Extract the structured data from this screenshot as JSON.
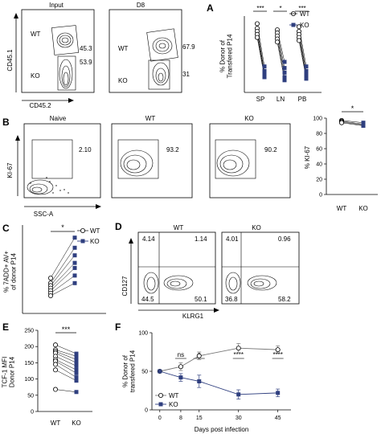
{
  "panels": {
    "A": {
      "letter": "A",
      "flow": {
        "col_titles": [
          "Input",
          "D8"
        ],
        "y_axis": "CD45.1",
        "x_axis": "CD45.2",
        "plot1": {
          "wt_label": "WT",
          "ko_label": "KO",
          "wt_pct": "45.3",
          "ko_pct": "53.9"
        },
        "plot2": {
          "wt_label": "WT",
          "ko_label": "KO",
          "wt_pct": "67.9",
          "ko_pct": "31"
        }
      }
    },
    "B": {
      "letter": "B",
      "flow": {
        "titles": [
          "Naive",
          "WT",
          "KO"
        ],
        "values": [
          "2.10",
          "93.2",
          "90.2"
        ],
        "y_axis": "KI-67",
        "x_axis": "SSC-A"
      }
    },
    "C": {
      "letter": "C"
    },
    "D": {
      "letter": "D",
      "flow": {
        "titles": [
          "WT",
          "KO"
        ],
        "y_axis": "CD127",
        "x_axis": "KLRG1",
        "wt_quadrants": [
          "4.14",
          "1.14",
          "44.5",
          "50.1"
        ],
        "ko_quadrants": [
          "4.01",
          "0.96",
          "36.8",
          "58.2"
        ]
      }
    },
    "E": {
      "letter": "E"
    },
    "F": {
      "letter": "F"
    }
  },
  "chart_data": [
    {
      "id": "A_right",
      "type": "scatter",
      "ylabel": "% Donor of\nTransfered P14",
      "categories": [
        "SP",
        "LN",
        "PB"
      ],
      "legend": [
        "WT",
        "KO"
      ],
      "legend_position": "top-right",
      "significance": [
        "***",
        "*",
        "***"
      ],
      "series": [
        {
          "name": "WT",
          "marker": "open-circle",
          "values_per_group": [
            [
              65,
              62,
              60,
              58,
              56
            ],
            [
              61,
              59,
              57,
              55,
              53
            ],
            [
              63,
              60,
              58,
              56,
              54
            ]
          ]
        },
        {
          "name": "KO",
          "marker": "filled-square",
          "values_per_group": [
            [
              37,
              34,
              32,
              31,
              30
            ],
            [
              40,
              36,
              33,
              30,
              28
            ],
            [
              37,
              34,
              32,
              30,
              29
            ]
          ]
        }
      ]
    },
    {
      "id": "B_right",
      "type": "scatter",
      "ylabel": "% KI-67",
      "categories": [
        "WT",
        "KO"
      ],
      "ylim": [
        0,
        100
      ],
      "yticks": [
        0,
        20,
        40,
        60,
        80,
        100
      ],
      "significance": "*",
      "pairs": [
        [
          97,
          94
        ],
        [
          96,
          92
        ],
        [
          95,
          91
        ],
        [
          94,
          90
        ]
      ]
    },
    {
      "id": "C",
      "type": "scatter",
      "ylabel": "% 7ADD+ AV+\nof donor P14",
      "legend": [
        "WT",
        "KO"
      ],
      "legend_position": "top-right",
      "significance": "*",
      "pairs": [
        [
          14,
          30
        ],
        [
          12,
          26
        ],
        [
          11,
          23
        ],
        [
          10,
          20
        ],
        [
          9,
          18
        ],
        [
          8,
          15
        ],
        [
          7,
          12
        ]
      ]
    },
    {
      "id": "E",
      "type": "scatter",
      "ylabel": "TCF-1 MFI\nDonor P14",
      "categories": [
        "WT",
        "KO"
      ],
      "ylim": [
        0,
        250
      ],
      "yticks": [
        0,
        50,
        100,
        150,
        200,
        250
      ],
      "significance": "***",
      "pairs": [
        [
          205,
          178
        ],
        [
          190,
          170
        ],
        [
          185,
          160
        ],
        [
          180,
          150
        ],
        [
          170,
          140
        ],
        [
          160,
          128
        ],
        [
          155,
          118
        ],
        [
          145,
          105
        ],
        [
          128,
          95
        ],
        [
          68,
          60
        ]
      ]
    },
    {
      "id": "F",
      "type": "line",
      "title": "",
      "xlabel": "Days post infection",
      "ylabel": "% Donor of\ntransfered P14",
      "x": [
        0,
        8,
        15,
        30,
        45
      ],
      "xlim": [
        0,
        45
      ],
      "ylim": [
        0,
        100
      ],
      "yticks": [
        0,
        50,
        100
      ],
      "legend_position": "bottom-left",
      "significance": [
        "ns",
        "*",
        "****",
        "****"
      ],
      "series": [
        {
          "name": "WT",
          "marker": "open-circle",
          "values": [
            50,
            56,
            70,
            80,
            78
          ],
          "err": [
            0,
            5,
            5,
            6,
            5
          ]
        },
        {
          "name": "KO",
          "marker": "filled-square",
          "values": [
            50,
            42,
            37,
            20,
            22
          ],
          "err": [
            0,
            5,
            8,
            6,
            5
          ]
        }
      ]
    }
  ]
}
